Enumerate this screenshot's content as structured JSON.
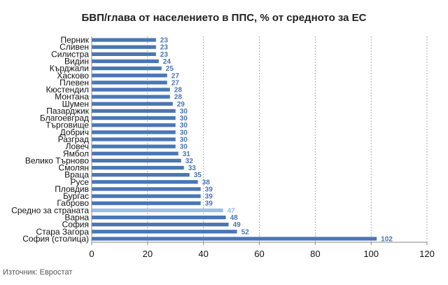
{
  "chart_data": {
    "type": "bar",
    "orientation": "horizontal",
    "title": "БВП/глава от населението в ППС, % от средното за ЕС",
    "xlabel": "",
    "ylabel": "",
    "xlim": [
      0,
      120
    ],
    "x_ticks": [
      0,
      20,
      40,
      60,
      80,
      100,
      120
    ],
    "grid": "vertical-dotted",
    "categories": [
      "Перник",
      "Сливен",
      "Силистра",
      "Видин",
      "Кърджали",
      "Хасково",
      "Плевен",
      "Кюстендил",
      "Монтана",
      "Шумен",
      "Пазарджик",
      "Благоевград",
      "Търговище",
      "Добрич",
      "Разград",
      "Ловеч",
      "Ямбол",
      "Велико Търново",
      "Смолян",
      "Враца",
      "Русе",
      "Пловдив",
      "Бургас",
      "Габрово",
      "Средно за страната",
      "Варна",
      "София",
      "Стара Загора",
      "София (столица)"
    ],
    "values": [
      23,
      23,
      23,
      24,
      25,
      27,
      27,
      28,
      28,
      29,
      30,
      30,
      30,
      30,
      30,
      30,
      31,
      32,
      33,
      35,
      38,
      39,
      39,
      39,
      47,
      48,
      49,
      52,
      102
    ],
    "highlight_category": "Средно за страната",
    "bar_color": "#4a76b5",
    "highlight_color": "#9dbde6",
    "value_label_color": "#4a76b5",
    "highlight_label_color": "#9dbde6"
  },
  "source": "Източник: Евростат"
}
